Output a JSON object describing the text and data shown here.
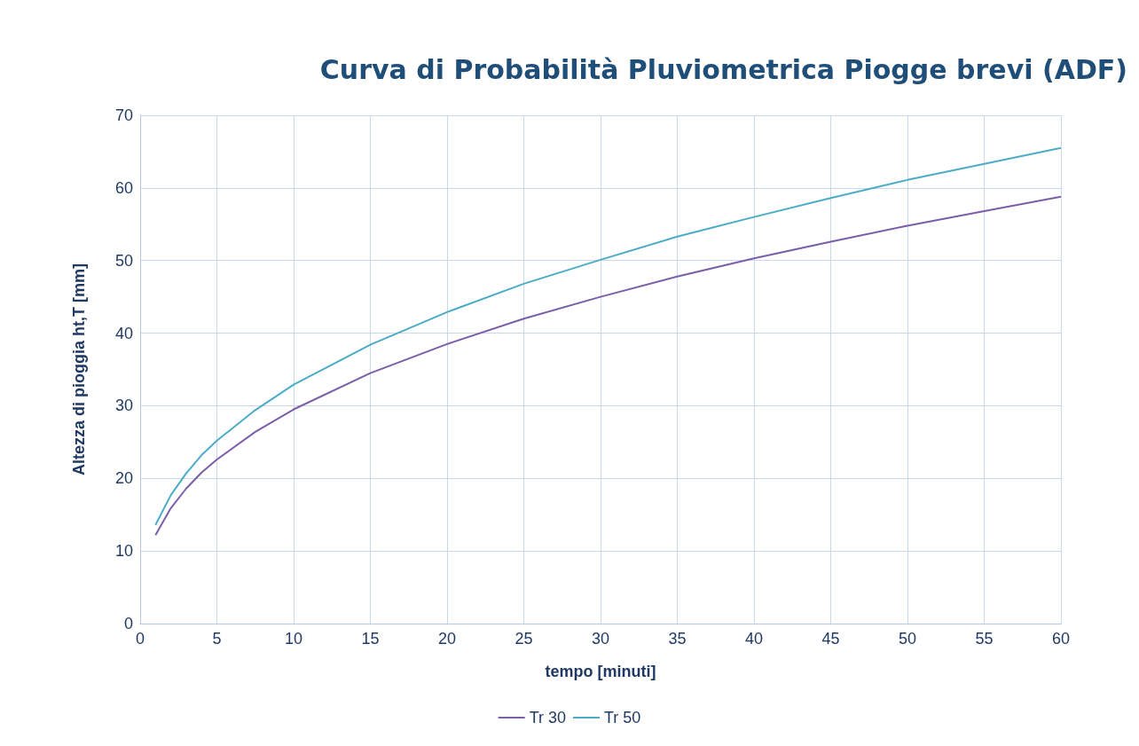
{
  "chart_data": {
    "type": "line",
    "title": "Curva di Probabilità Pluviometrica Piogge brevi (ADF)",
    "xlabel": "tempo [minuti]",
    "ylabel": "Altezza di pioggia ht,T [mm]",
    "x": [
      1,
      2,
      3,
      4,
      5,
      7.5,
      10,
      15,
      20,
      25,
      30,
      35,
      40,
      45,
      50,
      55,
      60
    ],
    "series": [
      {
        "name": "Tr 30",
        "color": "#7b5ea7",
        "values": [
          12.2,
          15.9,
          18.6,
          20.8,
          22.6,
          26.4,
          29.5,
          34.5,
          38.5,
          42.0,
          45.0,
          47.8,
          50.3,
          52.6,
          54.8,
          56.8,
          58.8
        ]
      },
      {
        "name": "Tr 50",
        "color": "#4bacc6",
        "values": [
          13.6,
          17.7,
          20.7,
          23.2,
          25.2,
          29.4,
          32.9,
          38.4,
          42.9,
          46.8,
          50.1,
          53.3,
          56.0,
          58.6,
          61.1,
          63.3,
          65.5
        ]
      }
    ],
    "xlim": [
      0,
      60
    ],
    "xticks": [
      0,
      5,
      10,
      15,
      20,
      25,
      30,
      35,
      40,
      45,
      50,
      55,
      60
    ],
    "ylim": [
      0,
      70
    ],
    "yticks": [
      0,
      10,
      20,
      30,
      40,
      50,
      60,
      70
    ],
    "grid": true,
    "legend": "bottom",
    "marker": "none",
    "line_style": "solid"
  }
}
